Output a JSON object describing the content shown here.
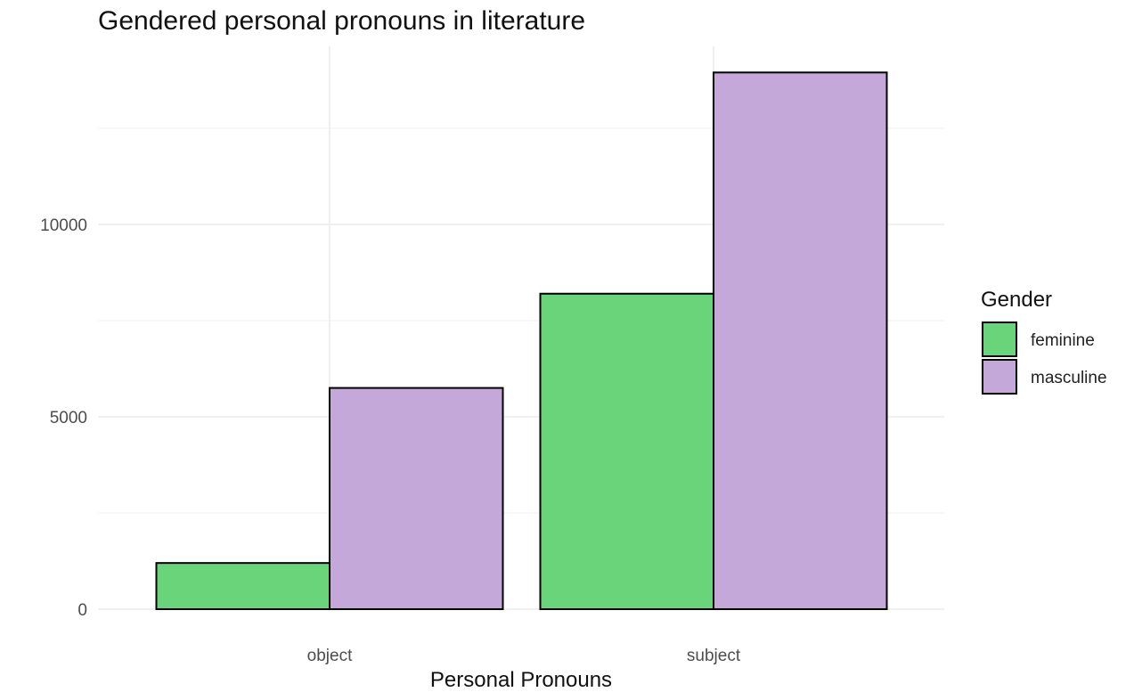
{
  "chart_data": {
    "type": "bar",
    "title": "Gendered personal pronouns in literature",
    "xlabel": "Personal Pronouns",
    "ylabel": "",
    "categories": [
      "object",
      "subject"
    ],
    "series": [
      {
        "name": "feminine",
        "values": [
          1200,
          8200
        ],
        "color": "#6ad47a"
      },
      {
        "name": "masculine",
        "values": [
          5750,
          13950
        ],
        "color": "#c3a8d9"
      }
    ],
    "ylim": [
      0,
      14600
    ],
    "yticks": [
      0,
      5000,
      10000
    ],
    "yticks_minor": [
      2500,
      7500,
      12500
    ],
    "grid": true,
    "legend": {
      "title": "Gender",
      "placement": "right"
    }
  }
}
